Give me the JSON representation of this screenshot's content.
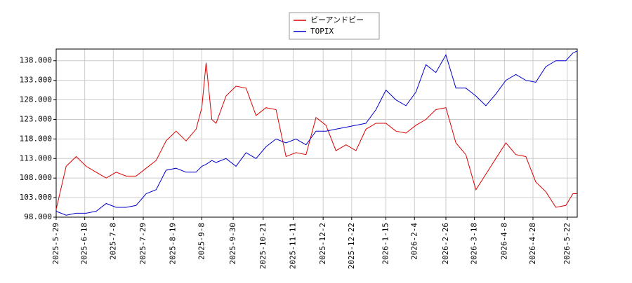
{
  "chart_data": {
    "type": "line",
    "x": [
      "2025-5-29",
      "2025-6-5",
      "2025-6-12",
      "2025-6-19",
      "2025-6-26",
      "2025-7-3",
      "2025-7-10",
      "2025-7-17",
      "2025-7-24",
      "2025-7-31",
      "2025-8-7",
      "2025-8-14",
      "2025-8-21",
      "2025-8-28",
      "2025-9-4",
      "2025-9-8",
      "2025-9-11",
      "2025-9-15",
      "2025-9-18",
      "2025-9-25",
      "2025-10-2",
      "2025-10-9",
      "2025-10-16",
      "2025-10-23",
      "2025-10-30",
      "2025-11-6",
      "2025-11-13",
      "2025-11-20",
      "2025-11-27",
      "2025-12-4",
      "2025-12-11",
      "2025-12-18",
      "2025-12-25",
      "2026-1-1",
      "2026-1-8",
      "2026-1-15",
      "2026-1-22",
      "2026-1-29",
      "2026-2-5",
      "2026-2-12",
      "2026-2-19",
      "2026-2-26",
      "2026-3-5",
      "2026-3-12",
      "2026-3-19",
      "2026-3-26",
      "2026-4-2",
      "2026-4-9",
      "2026-4-16",
      "2026-4-23",
      "2026-4-30",
      "2026-5-7",
      "2026-5-14",
      "2026-5-21",
      "2026-5-26",
      "2026-5-29"
    ],
    "series": [
      {
        "name": "ビーアンドビー",
        "color": "#dd0000",
        "values": [
          100,
          111,
          113.5,
          111,
          109.5,
          108,
          109.5,
          108.5,
          108.5,
          110.5,
          112.5,
          117.5,
          120,
          117.5,
          120.5,
          126,
          137.5,
          123,
          122,
          129,
          131.5,
          131,
          124,
          126,
          125.5,
          113.5,
          114.5,
          114,
          123.5,
          121.5,
          115,
          116.5,
          115,
          120.5,
          122,
          122,
          120,
          119.5,
          121.5,
          123,
          125.5,
          126,
          117,
          114,
          105,
          109,
          113,
          117,
          114,
          113.5,
          107,
          104.5,
          100.5,
          101,
          104,
          104
        ]
      },
      {
        "name": "TOPIX",
        "color": "#0000cc",
        "values": [
          99.5,
          98.5,
          99,
          99,
          99.5,
          101.5,
          100.5,
          100.5,
          101,
          104,
          105,
          110,
          110.5,
          109.5,
          109.5,
          111,
          111.5,
          112.5,
          112,
          113,
          111,
          114.5,
          113,
          116,
          118,
          117,
          118,
          116.5,
          120,
          120,
          120.5,
          121,
          121.5,
          122,
          125.5,
          130.5,
          128,
          126.5,
          130,
          137,
          135,
          139.5,
          131,
          131,
          129,
          126.5,
          129.5,
          133,
          134.5,
          133,
          132.5,
          136.5,
          138,
          138,
          140,
          140.5
        ]
      }
    ],
    "xlim": [
      "2025-5-29",
      "2026-5-29"
    ],
    "xticks": [
      "2025-5-29",
      "2025-6-18",
      "2025-7-8",
      "2025-7-29",
      "2025-8-19",
      "2025-9-8",
      "2025-9-30",
      "2025-10-21",
      "2025-11-11",
      "2025-12-2",
      "2025-12-22",
      "2026-1-15",
      "2026-2-4",
      "2026-2-26",
      "2026-3-18",
      "2026-4-8",
      "2026-4-28",
      "2026-5-22"
    ],
    "ylim": [
      98,
      141
    ],
    "yticks": [
      {
        "value": 98,
        "label": "98.000"
      },
      {
        "value": 103,
        "label": "103.000"
      },
      {
        "value": 108,
        "label": "108.000"
      },
      {
        "value": 113,
        "label": "113.000"
      },
      {
        "value": 118,
        "label": "118.000"
      },
      {
        "value": 123,
        "label": "123.000"
      },
      {
        "value": 128,
        "label": "128.000"
      },
      {
        "value": 133,
        "label": "133.000"
      },
      {
        "value": 138,
        "label": "138.000"
      }
    ],
    "grid": true,
    "legend": "top"
  }
}
